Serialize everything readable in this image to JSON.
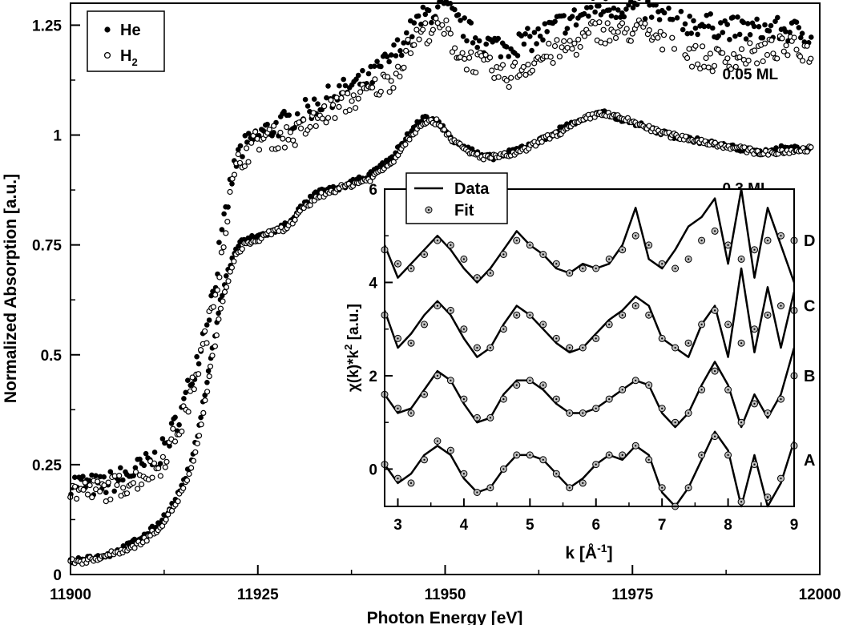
{
  "chart_data": [
    {
      "type": "scatter",
      "xlabel": "Photon Energy [eV]",
      "ylabel": "Normalized Absorption [a.u.]",
      "xlim": [
        11900,
        12000
      ],
      "ylim": [
        0,
        1.3
      ],
      "xticks": [
        {
          "value": 11900,
          "label": "11900"
        },
        {
          "value": 11925,
          "label": "11925"
        },
        {
          "value": 11950,
          "label": "11950"
        },
        {
          "value": 11975,
          "label": "11975"
        },
        {
          "value": 12000,
          "label": "12000"
        }
      ],
      "yticks": [
        {
          "value": 0,
          "label": "0"
        },
        {
          "value": 0.25,
          "label": "0.25"
        },
        {
          "value": 0.5,
          "label": "0.5"
        },
        {
          "value": 0.75,
          "label": "0.75"
        },
        {
          "value": 1,
          "label": "1"
        },
        {
          "value": 1.25,
          "label": "1.25"
        }
      ],
      "legend": {
        "placement": "top-left",
        "entries": [
          {
            "label": "He",
            "marker": "filled-circle"
          },
          {
            "label": "H",
            "subscript": "2",
            "marker": "open-circle"
          }
        ]
      },
      "annotations": [
        {
          "text": "0.05 ML",
          "x": 11987,
          "y": 1.14
        },
        {
          "text": "0.3 ML",
          "x": 11987,
          "y": 0.88
        }
      ],
      "series": [
        {
          "name": "He",
          "group": "0.05 ML",
          "marker": "filled-circle",
          "x": [
            11900,
            11904,
            11908,
            11912,
            11915,
            11917,
            11919,
            11920.5,
            11921.5,
            11922.5,
            11925,
            11930,
            11935,
            11940,
            11943,
            11946,
            11948,
            11950,
            11952,
            11955,
            11958,
            11962,
            11965,
            11968,
            11970,
            11973,
            11976,
            11978,
            11980,
            11985,
            11990,
            11995,
            11999
          ],
          "y": [
            0.21,
            0.2,
            0.23,
            0.27,
            0.38,
            0.5,
            0.64,
            0.8,
            0.9,
            0.96,
            1.0,
            1.04,
            1.09,
            1.13,
            1.18,
            1.25,
            1.28,
            1.29,
            1.25,
            1.21,
            1.2,
            1.22,
            1.25,
            1.27,
            1.29,
            1.29,
            1.29,
            1.28,
            1.26,
            1.25,
            1.24,
            1.24,
            1.23
          ]
        },
        {
          "name": "H2",
          "group": "0.05 ML",
          "marker": "open-circle",
          "x": [
            11900,
            11904,
            11908,
            11912,
            11915,
            11917,
            11919,
            11920.5,
            11921.5,
            11922.5,
            11925,
            11930,
            11935,
            11940,
            11943,
            11946,
            11948,
            11950,
            11952,
            11955,
            11958,
            11962,
            11965,
            11968,
            11970,
            11973,
            11976,
            11978,
            11980,
            11985,
            11990,
            11995,
            11999
          ],
          "y": [
            0.19,
            0.19,
            0.21,
            0.25,
            0.35,
            0.47,
            0.61,
            0.77,
            0.88,
            0.94,
            0.99,
            1.0,
            1.06,
            1.1,
            1.13,
            1.22,
            1.24,
            1.24,
            1.18,
            1.16,
            1.13,
            1.17,
            1.19,
            1.21,
            1.24,
            1.23,
            1.24,
            1.22,
            1.2,
            1.17,
            1.18,
            1.2,
            1.19
          ]
        },
        {
          "name": "He",
          "group": "0.3 ML",
          "marker": "filled-circle",
          "x": [
            11900,
            11902,
            11904,
            11906,
            11908,
            11910,
            11912,
            11914,
            11916,
            11917,
            11918,
            11919,
            11920,
            11921,
            11922,
            11923,
            11925,
            11927,
            11929,
            11931,
            11933,
            11936,
            11940,
            11943,
            11945,
            11947,
            11949,
            11951,
            11953,
            11955,
            11957,
            11960,
            11963,
            11966,
            11969,
            11971,
            11973,
            11975,
            11978,
            11980,
            11983,
            11986,
            11989,
            11992,
            11995,
            11999
          ],
          "y": [
            0.03,
            0.04,
            0.04,
            0.05,
            0.07,
            0.09,
            0.12,
            0.17,
            0.25,
            0.32,
            0.42,
            0.52,
            0.62,
            0.69,
            0.74,
            0.76,
            0.77,
            0.78,
            0.8,
            0.84,
            0.87,
            0.88,
            0.91,
            0.95,
            1.0,
            1.04,
            1.03,
            0.99,
            0.97,
            0.95,
            0.95,
            0.97,
            0.99,
            1.02,
            1.04,
            1.05,
            1.04,
            1.03,
            1.01,
            1.0,
            0.99,
            0.98,
            0.97,
            0.96,
            0.97,
            0.97
          ]
        },
        {
          "name": "H2",
          "group": "0.3 ML",
          "marker": "open-circle",
          "x": [
            11900,
            11902,
            11904,
            11906,
            11908,
            11910,
            11912,
            11914,
            11916,
            11917,
            11918,
            11919,
            11920,
            11921,
            11922,
            11923,
            11925,
            11927,
            11929,
            11931,
            11933,
            11936,
            11940,
            11943,
            11945,
            11947,
            11949,
            11951,
            11953,
            11955,
            11957,
            11960,
            11963,
            11966,
            11969,
            11971,
            11973,
            11975,
            11978,
            11980,
            11983,
            11986,
            11989,
            11992,
            11995,
            11999
          ],
          "y": [
            0.03,
            0.03,
            0.04,
            0.05,
            0.06,
            0.08,
            0.11,
            0.16,
            0.23,
            0.3,
            0.4,
            0.5,
            0.6,
            0.67,
            0.72,
            0.75,
            0.76,
            0.78,
            0.79,
            0.83,
            0.86,
            0.88,
            0.9,
            0.94,
            0.99,
            1.03,
            1.03,
            0.99,
            0.96,
            0.95,
            0.95,
            0.96,
            0.99,
            1.01,
            1.04,
            1.05,
            1.04,
            1.03,
            1.01,
            1.0,
            0.99,
            0.98,
            0.97,
            0.96,
            0.96,
            0.97
          ]
        }
      ]
    },
    {
      "type": "line",
      "xlabel": "k [Å⁻¹]",
      "ylabel": "χ(k)*k² [a.u.]",
      "xlim": [
        2.8,
        9
      ],
      "ylim": [
        -0.8,
        6
      ],
      "xticks": [
        {
          "value": 3,
          "label": "3"
        },
        {
          "value": 4,
          "label": "4"
        },
        {
          "value": 5,
          "label": "5"
        },
        {
          "value": 6,
          "label": "6"
        },
        {
          "value": 7,
          "label": "7"
        },
        {
          "value": 8,
          "label": "8"
        },
        {
          "value": 9,
          "label": "9"
        }
      ],
      "yticks": [
        {
          "value": 0,
          "label": "0"
        },
        {
          "value": 2,
          "label": "2"
        },
        {
          "value": 4,
          "label": "4"
        },
        {
          "value": 6,
          "label": "6"
        }
      ],
      "legend": {
        "placement": "top-left",
        "entries": [
          {
            "label": "Data",
            "marker": "line"
          },
          {
            "label": "Fit",
            "marker": "dotted-circle"
          }
        ]
      },
      "series_labels": [
        {
          "text": "A",
          "y": 0.2
        },
        {
          "text": "B",
          "y": 2.0
        },
        {
          "text": "C",
          "y": 3.5
        },
        {
          "text": "D",
          "y": 4.9
        }
      ],
      "k": [
        2.8,
        3.0,
        3.2,
        3.4,
        3.6,
        3.8,
        4.0,
        4.2,
        4.4,
        4.6,
        4.8,
        5.0,
        5.2,
        5.4,
        5.6,
        5.8,
        6.0,
        6.2,
        6.4,
        6.6,
        6.8,
        7.0,
        7.2,
        7.4,
        7.6,
        7.8,
        8.0,
        8.2,
        8.4,
        8.6,
        8.8,
        9.0
      ],
      "series": [
        {
          "name": "A Data",
          "role": "data",
          "offset": "A",
          "values": [
            0.1,
            -0.3,
            -0.1,
            0.3,
            0.5,
            0.3,
            -0.2,
            -0.5,
            -0.4,
            0.0,
            0.3,
            0.3,
            0.2,
            -0.1,
            -0.4,
            -0.2,
            0.1,
            0.3,
            0.2,
            0.5,
            0.3,
            -0.5,
            -0.9,
            -0.4,
            0.2,
            0.8,
            0.4,
            -0.9,
            0.3,
            -0.9,
            -0.3,
            0.6
          ]
        },
        {
          "name": "A Fit",
          "role": "fit",
          "offset": "A",
          "values": [
            0.1,
            -0.2,
            -0.3,
            0.2,
            0.6,
            0.4,
            -0.1,
            -0.5,
            -0.4,
            0.0,
            0.3,
            0.3,
            0.2,
            -0.1,
            -0.4,
            -0.3,
            0.1,
            0.3,
            0.3,
            0.5,
            0.2,
            -0.4,
            -0.8,
            -0.4,
            0.3,
            0.7,
            0.3,
            -0.7,
            0.1,
            -0.6,
            -0.2,
            0.5
          ]
        },
        {
          "name": "B Data",
          "role": "data",
          "offset": "B",
          "values": [
            1.6,
            1.2,
            1.3,
            1.7,
            2.1,
            1.9,
            1.4,
            1.0,
            1.1,
            1.6,
            1.9,
            1.9,
            1.7,
            1.4,
            1.2,
            1.2,
            1.3,
            1.5,
            1.7,
            1.9,
            1.8,
            1.2,
            0.9,
            1.2,
            1.8,
            2.3,
            1.8,
            0.9,
            1.6,
            1.1,
            1.6,
            2.6
          ]
        },
        {
          "name": "B Fit",
          "role": "fit",
          "offset": "B",
          "values": [
            1.6,
            1.3,
            1.2,
            1.6,
            2.0,
            1.9,
            1.5,
            1.1,
            1.1,
            1.5,
            1.8,
            1.9,
            1.8,
            1.5,
            1.2,
            1.2,
            1.3,
            1.5,
            1.7,
            1.9,
            1.8,
            1.3,
            1.0,
            1.2,
            1.7,
            2.1,
            1.7,
            1.0,
            1.4,
            1.2,
            1.5,
            2.0
          ]
        },
        {
          "name": "C Data",
          "role": "data",
          "offset": "C",
          "values": [
            3.4,
            2.6,
            2.9,
            3.3,
            3.6,
            3.3,
            2.8,
            2.4,
            2.6,
            3.1,
            3.5,
            3.3,
            3.0,
            2.7,
            2.5,
            2.6,
            2.9,
            3.2,
            3.4,
            3.7,
            3.5,
            2.8,
            2.6,
            2.4,
            3.1,
            3.5,
            2.4,
            4.3,
            2.5,
            3.9,
            2.6,
            3.8
          ]
        },
        {
          "name": "C Fit",
          "role": "fit",
          "offset": "C",
          "values": [
            3.3,
            2.8,
            2.7,
            3.1,
            3.5,
            3.4,
            3.0,
            2.6,
            2.6,
            3.0,
            3.3,
            3.3,
            3.1,
            2.8,
            2.6,
            2.6,
            2.8,
            3.1,
            3.3,
            3.5,
            3.3,
            2.8,
            2.6,
            2.7,
            3.1,
            3.4,
            3.1,
            2.7,
            3.0,
            3.3,
            3.5,
            3.4
          ]
        },
        {
          "name": "D Data",
          "role": "data",
          "offset": "D",
          "values": [
            4.8,
            4.1,
            4.4,
            4.7,
            5.0,
            4.7,
            4.3,
            4.0,
            4.3,
            4.7,
            5.1,
            4.8,
            4.6,
            4.3,
            4.2,
            4.4,
            4.3,
            4.4,
            4.8,
            5.6,
            4.5,
            4.3,
            4.7,
            5.2,
            5.4,
            5.8,
            4.4,
            6.0,
            4.1,
            5.6,
            4.8,
            4.0
          ]
        },
        {
          "name": "D Fit",
          "role": "fit",
          "offset": "D",
          "values": [
            4.7,
            4.4,
            4.3,
            4.6,
            4.9,
            4.8,
            4.5,
            4.1,
            4.2,
            4.6,
            4.9,
            4.8,
            4.6,
            4.4,
            4.2,
            4.3,
            4.3,
            4.5,
            4.7,
            5.0,
            4.8,
            4.4,
            4.3,
            4.5,
            4.9,
            5.1,
            4.8,
            4.5,
            4.7,
            4.9,
            5.0,
            4.9
          ]
        }
      ]
    }
  ],
  "colors": {
    "ink": "#000000",
    "background": "#ffffff",
    "fit_marker_fill": "#bdbdbd"
  }
}
